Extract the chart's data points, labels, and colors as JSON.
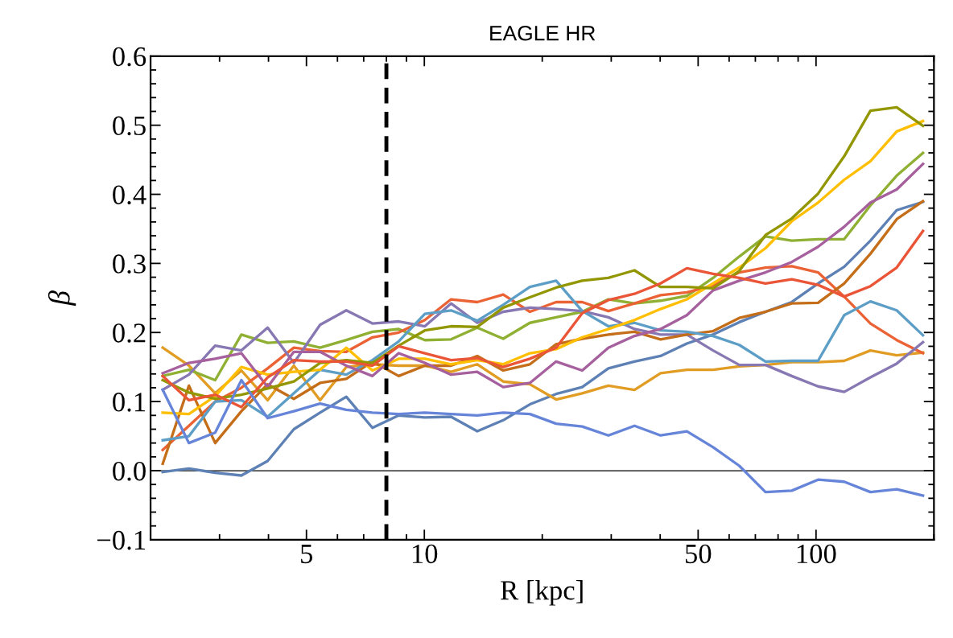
{
  "chart_data": {
    "type": "line",
    "title": "EAGLE HR",
    "xlabel": "R [kpc]",
    "ylabel": "β",
    "log": "x",
    "marker": "none",
    "line_style": "solid",
    "x": [
      2.148,
      2.506,
      2.924,
      3.411,
      3.98,
      4.643,
      5.417,
      6.32,
      7.37,
      8.6,
      10.03,
      11.7,
      13.65,
      15.9,
      18.6,
      21.7,
      25.3,
      29.5,
      34.4,
      40.1,
      46.8,
      54.6,
      63.7,
      74.3,
      86.7,
      101.2,
      118.0,
      137.7,
      160.7,
      187.5
    ],
    "xlim": [
      2,
      200
    ],
    "xticks": [
      5,
      10,
      50,
      100
    ],
    "ylim": [
      -0.1,
      0.6
    ],
    "yticks": [
      {
        "value": -0.1,
        "label": "−0.1"
      },
      {
        "value": 0.0,
        "label": "0.0"
      },
      {
        "value": 0.1,
        "label": "0.1"
      },
      {
        "value": 0.2,
        "label": "0.2"
      },
      {
        "value": 0.3,
        "label": "0.3"
      },
      {
        "value": 0.4,
        "label": "0.4"
      },
      {
        "value": 0.5,
        "label": "0.5"
      },
      {
        "value": 0.6,
        "label": "0.6"
      }
    ],
    "ref_lines": [
      {
        "axis": "y",
        "value": 0,
        "color": "#000000",
        "line_style": "solid"
      },
      {
        "axis": "x",
        "value": 8,
        "color": "#000000",
        "line_style": "dashed"
      }
    ],
    "series": [
      {
        "color": "#5e81b5",
        "values": [
          -0.002,
          0.003,
          -0.003,
          -0.007,
          0.014,
          0.06,
          0.084,
          0.107,
          0.062,
          0.08,
          0.077,
          0.078,
          0.057,
          0.073,
          0.096,
          0.111,
          0.121,
          0.148,
          0.158,
          0.166,
          0.184,
          0.197,
          0.215,
          0.23,
          0.244,
          0.271,
          0.295,
          0.333,
          0.377,
          0.389
        ]
      },
      {
        "color": "#e19c24",
        "values": [
          0.178,
          0.152,
          0.112,
          0.145,
          0.102,
          0.152,
          0.102,
          0.15,
          0.154,
          0.152,
          0.152,
          0.143,
          0.154,
          0.129,
          0.125,
          0.103,
          0.112,
          0.123,
          0.117,
          0.141,
          0.146,
          0.146,
          0.151,
          0.153,
          0.157,
          0.157,
          0.159,
          0.174,
          0.167,
          0.171
        ]
      },
      {
        "color": "#8fb032",
        "values": [
          0.137,
          0.146,
          0.131,
          0.197,
          0.185,
          0.187,
          0.178,
          0.189,
          0.201,
          0.205,
          0.189,
          0.19,
          0.207,
          0.191,
          0.214,
          0.222,
          0.23,
          0.248,
          0.242,
          0.246,
          0.253,
          0.279,
          0.31,
          0.339,
          0.333,
          0.335,
          0.335,
          0.384,
          0.427,
          0.46
        ]
      },
      {
        "color": "#eb6235",
        "values": [
          0.03,
          0.065,
          0.1,
          0.12,
          0.148,
          0.178,
          0.173,
          0.172,
          0.193,
          0.2,
          0.218,
          0.248,
          0.244,
          0.255,
          0.23,
          0.244,
          0.244,
          0.231,
          0.242,
          0.254,
          0.258,
          0.268,
          0.287,
          0.294,
          0.296,
          0.287,
          0.252,
          0.213,
          0.189,
          0.17
        ]
      },
      {
        "color": "#8778b3",
        "values": [
          0.117,
          0.139,
          0.181,
          0.174,
          0.207,
          0.156,
          0.211,
          0.232,
          0.213,
          0.216,
          0.209,
          0.242,
          0.214,
          0.23,
          0.236,
          0.234,
          0.231,
          0.222,
          0.205,
          0.197,
          0.197,
          0.174,
          0.153,
          0.153,
          0.137,
          0.122,
          0.114,
          0.135,
          0.155,
          0.186
        ]
      },
      {
        "color": "#c56e1a",
        "values": [
          0.01,
          0.123,
          0.04,
          0.086,
          0.125,
          0.104,
          0.127,
          0.133,
          0.158,
          0.137,
          0.152,
          0.152,
          0.166,
          0.145,
          0.154,
          0.183,
          0.191,
          0.197,
          0.201,
          0.19,
          0.197,
          0.202,
          0.221,
          0.23,
          0.242,
          0.243,
          0.271,
          0.314,
          0.364,
          0.39
        ]
      },
      {
        "color": "#5d9ec7",
        "values": [
          0.044,
          0.05,
          0.1,
          0.102,
          0.078,
          0.112,
          0.146,
          0.139,
          0.16,
          0.187,
          0.227,
          0.232,
          0.217,
          0.24,
          0.266,
          0.275,
          0.231,
          0.209,
          0.214,
          0.203,
          0.201,
          0.195,
          0.182,
          0.158,
          0.159,
          0.159,
          0.225,
          0.245,
          0.232,
          0.196
        ]
      },
      {
        "color": "#ffbf00",
        "values": [
          0.084,
          0.082,
          0.108,
          0.15,
          0.139,
          0.143,
          0.146,
          0.178,
          0.145,
          0.162,
          0.162,
          0.154,
          0.16,
          0.154,
          0.17,
          0.176,
          0.193,
          0.205,
          0.218,
          0.234,
          0.248,
          0.271,
          0.294,
          0.322,
          0.361,
          0.388,
          0.421,
          0.448,
          0.491,
          0.506
        ]
      },
      {
        "color": "#a5609d",
        "values": [
          0.141,
          0.156,
          0.162,
          0.17,
          0.121,
          0.172,
          0.172,
          0.152,
          0.137,
          0.17,
          0.156,
          0.139,
          0.143,
          0.121,
          0.127,
          0.158,
          0.145,
          0.178,
          0.195,
          0.205,
          0.225,
          0.261,
          0.275,
          0.287,
          0.302,
          0.324,
          0.353,
          0.388,
          0.407,
          0.444
        ]
      },
      {
        "color": "#929600",
        "values": [
          0.131,
          0.113,
          0.104,
          0.11,
          0.119,
          0.129,
          0.156,
          0.16,
          0.156,
          0.181,
          0.203,
          0.209,
          0.208,
          0.236,
          0.251,
          0.265,
          0.275,
          0.279,
          0.29,
          0.266,
          0.266,
          0.264,
          0.289,
          0.341,
          0.365,
          0.401,
          0.455,
          0.521,
          0.526,
          0.499
        ]
      },
      {
        "color": "#e95536",
        "values": [
          0.137,
          0.102,
          0.11,
          0.092,
          0.135,
          0.16,
          0.158,
          0.158,
          0.152,
          0.18,
          0.17,
          0.16,
          0.163,
          0.15,
          0.162,
          0.178,
          0.228,
          0.247,
          0.256,
          0.271,
          0.293,
          0.285,
          0.279,
          0.271,
          0.277,
          0.269,
          0.252,
          0.267,
          0.294,
          0.347
        ]
      },
      {
        "color": "#6685d9",
        "values": [
          0.117,
          0.04,
          0.055,
          0.131,
          0.076,
          0.086,
          0.097,
          0.088,
          0.084,
          0.082,
          0.084,
          0.082,
          0.08,
          0.084,
          0.082,
          0.068,
          0.064,
          0.051,
          0.065,
          0.051,
          0.057,
          0.034,
          0.007,
          -0.031,
          -0.029,
          -0.013,
          -0.016,
          -0.031,
          -0.027,
          -0.036
        ]
      }
    ]
  }
}
